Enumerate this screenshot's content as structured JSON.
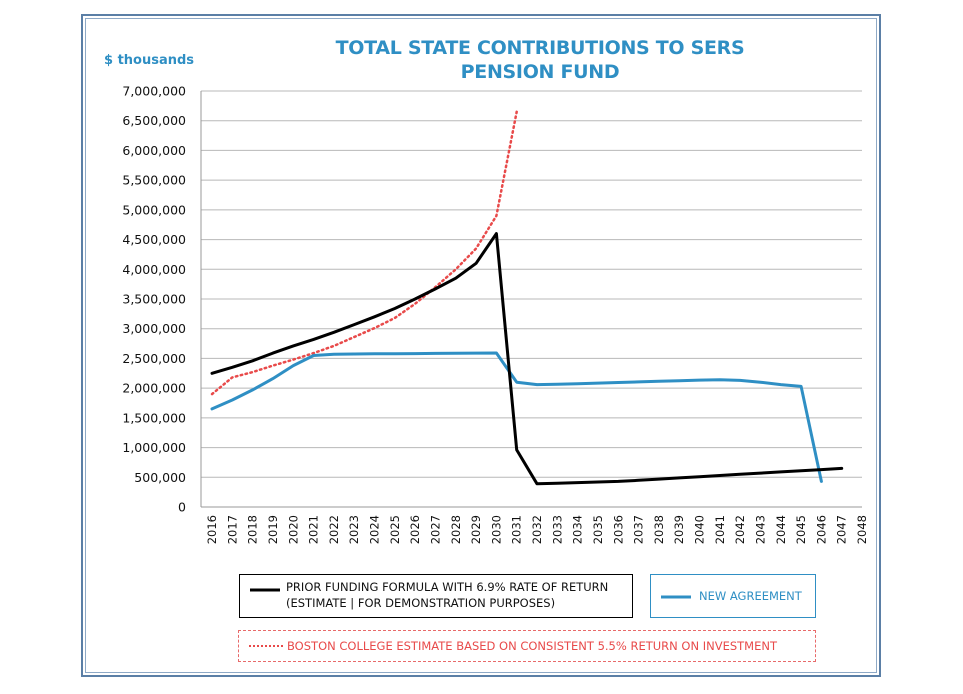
{
  "chart_data": {
    "type": "line",
    "title": "TOTAL STATE CONTRIBUTIONS TO SERS PENSION FUND",
    "unit_label": "$ thousands",
    "ylim": [
      0,
      7000000
    ],
    "yticks": [
      0,
      500000,
      1000000,
      1500000,
      2000000,
      2500000,
      3000000,
      3500000,
      4000000,
      4500000,
      5000000,
      5500000,
      6000000,
      6500000,
      7000000
    ],
    "ytick_labels": [
      "0",
      "500,000",
      "1,000,000",
      "1,500,000",
      "2,000,000",
      "2,500,000",
      "3,000,000",
      "3,500,000",
      "4,000,000",
      "4,500,000",
      "5,000,000",
      "5,500,000",
      "6,000,000",
      "6,500,000",
      "7,000,000"
    ],
    "grid": "horizontal",
    "legend_position": "bottom",
    "x": [
      2016,
      2017,
      2018,
      2019,
      2020,
      2021,
      2022,
      2023,
      2024,
      2025,
      2026,
      2027,
      2028,
      2029,
      2030,
      2031,
      2032,
      2033,
      2034,
      2035,
      2036,
      2037,
      2038,
      2039,
      2040,
      2041,
      2042,
      2043,
      2044,
      2045,
      2046,
      2047,
      2048
    ],
    "xtick_labels": [
      "2016",
      "2017",
      "2018",
      "2019",
      "2020",
      "2021",
      "2022",
      "2023",
      "2024",
      "2025",
      "2026",
      "2027",
      "2028",
      "2029",
      "2030",
      "2031",
      "2032",
      "2033",
      "2034",
      "2035",
      "2036",
      "2037",
      "2038",
      "2039",
      "2040",
      "2041",
      "2042",
      "2043",
      "2044",
      "2045",
      "2046",
      "2047",
      "2048"
    ],
    "series": [
      {
        "name": "PRIOR FUNDING FORMULA WITH 6.9% RATE OF RETURN (ESTIMATE | FOR DEMONSTRATION PURPOSES)",
        "name_lines": [
          "PRIOR FUNDING FORMULA WITH 6.9% RATE OF RETURN",
          "(ESTIMATE | FOR DEMONSTRATION PURPOSES)"
        ],
        "color": "#000000",
        "style": "solid",
        "values": [
          2250000,
          2350000,
          2460000,
          2590000,
          2710000,
          2820000,
          2940000,
          3070000,
          3200000,
          3340000,
          3500000,
          3670000,
          3850000,
          4100000,
          4600000,
          960000,
          390000,
          400000,
          410000,
          420000,
          430000,
          450000,
          470000,
          490000,
          510000,
          530000,
          550000,
          570000,
          590000,
          610000,
          630000,
          650000,
          null
        ]
      },
      {
        "name": "NEW AGREEMENT",
        "color": "#2f8fc4",
        "style": "solid",
        "values": [
          1650000,
          1800000,
          1970000,
          2160000,
          2380000,
          2550000,
          2570000,
          2575000,
          2578000,
          2580000,
          2582000,
          2585000,
          2588000,
          2590000,
          2592000,
          2100000,
          2060000,
          2065000,
          2075000,
          2085000,
          2095000,
          2105000,
          2115000,
          2125000,
          2135000,
          2140000,
          2130000,
          2100000,
          2060000,
          2030000,
          430000,
          null,
          null
        ]
      },
      {
        "name": "BOSTON COLLEGE ESTIMATE BASED ON CONSISTENT 5.5% RETURN ON INVESTMENT",
        "color": "#e84a4a",
        "style": "dotted",
        "values": [
          1900000,
          2180000,
          2270000,
          2380000,
          2480000,
          2590000,
          2710000,
          2860000,
          3010000,
          3180000,
          3420000,
          3700000,
          4000000,
          4350000,
          4900000,
          6650000,
          null,
          null,
          null,
          null,
          null,
          null,
          null,
          null,
          null,
          null,
          null,
          null,
          null,
          null,
          null,
          null,
          null
        ]
      }
    ]
  }
}
